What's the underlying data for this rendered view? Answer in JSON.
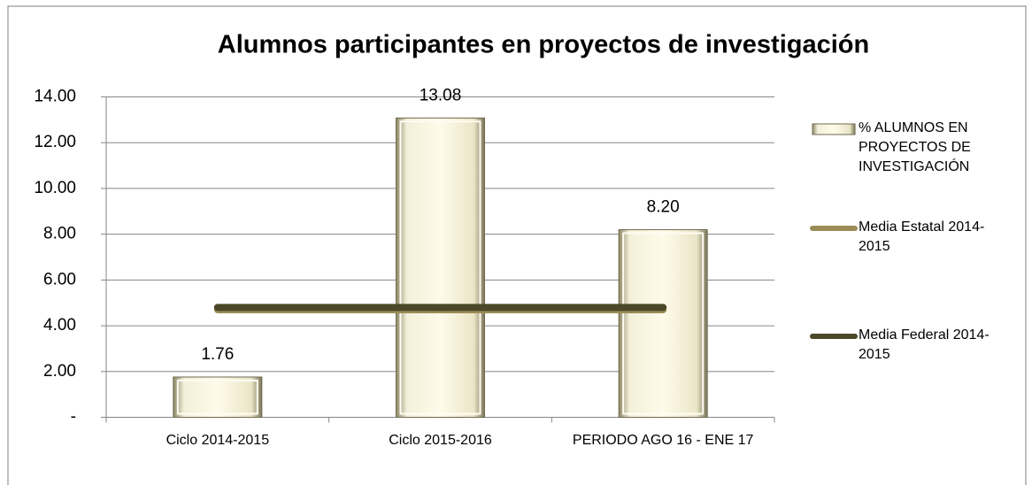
{
  "chart_data": {
    "type": "bar",
    "title": "Alumnos participantes en proyectos de investigación",
    "categories": [
      "Ciclo 2014-2015",
      "Ciclo 2015-2016",
      "PERIODO AGO 16 - ENE 17"
    ],
    "series": [
      {
        "name": "% ALUMNOS EN PROYECTOS DE INVESTIGACIÓN",
        "type": "bar",
        "color": "#eee8cc",
        "values": [
          1.76,
          13.08,
          8.2
        ],
        "value_labels": [
          "1.76",
          "13.08",
          "8.20"
        ]
      },
      {
        "name": "Media Estatal 2014-2015",
        "type": "line",
        "color": "#9a8c57",
        "values": [
          4.7,
          4.7,
          4.7
        ]
      },
      {
        "name": "Media Federal 2014-2015",
        "type": "line",
        "color": "#4b4829",
        "values": [
          4.8,
          4.8,
          4.8
        ]
      }
    ],
    "ylim": [
      0,
      14
    ],
    "yticks": [
      {
        "value": 0,
        "label": "-"
      },
      {
        "value": 2,
        "label": "2.00"
      },
      {
        "value": 4,
        "label": "4.00"
      },
      {
        "value": 6,
        "label": "6.00"
      },
      {
        "value": 8,
        "label": "8.00"
      },
      {
        "value": 10,
        "label": "10.00"
      },
      {
        "value": 12,
        "label": "12.00"
      },
      {
        "value": 14,
        "label": "14.00"
      }
    ],
    "grid": true,
    "legend": "right"
  }
}
